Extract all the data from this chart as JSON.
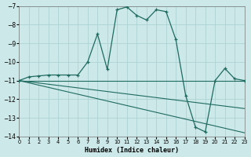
{
  "xlabel": "Humidex (Indice chaleur)",
  "xlim": [
    0,
    23
  ],
  "ylim": [
    -14,
    -7
  ],
  "yticks": [
    -14,
    -13,
    -12,
    -11,
    -10,
    -9,
    -8,
    -7
  ],
  "xticks": [
    0,
    1,
    2,
    3,
    4,
    5,
    6,
    7,
    8,
    9,
    10,
    11,
    12,
    13,
    14,
    15,
    16,
    17,
    18,
    19,
    20,
    21,
    22,
    23
  ],
  "bg_color": "#cce8e8",
  "line_color": "#1f6b60",
  "grid_color": "#a8cfcf",
  "main_line": {
    "x": [
      0,
      1,
      2,
      3,
      4,
      5,
      6,
      7,
      8,
      9,
      10,
      11,
      12,
      13,
      14,
      15,
      16,
      17,
      18,
      19,
      20,
      21,
      22,
      23
    ],
    "y": [
      -11.0,
      -10.8,
      -10.75,
      -10.7,
      -10.7,
      -10.7,
      -10.7,
      -10.0,
      -8.5,
      -10.4,
      -7.2,
      -7.05,
      -7.5,
      -7.75,
      -7.2,
      -7.3,
      -8.8,
      -11.8,
      -13.5,
      -13.75,
      -11.0,
      -10.35,
      -10.9,
      -11.0
    ]
  },
  "flat_line": {
    "x": [
      0,
      23
    ],
    "y": [
      -11.0,
      -11.0
    ]
  },
  "trend_line1": {
    "x": [
      0,
      23
    ],
    "y": [
      -11.0,
      -13.8
    ]
  },
  "trend_line2": {
    "x": [
      0,
      23
    ],
    "y": [
      -11.0,
      -12.5
    ]
  }
}
